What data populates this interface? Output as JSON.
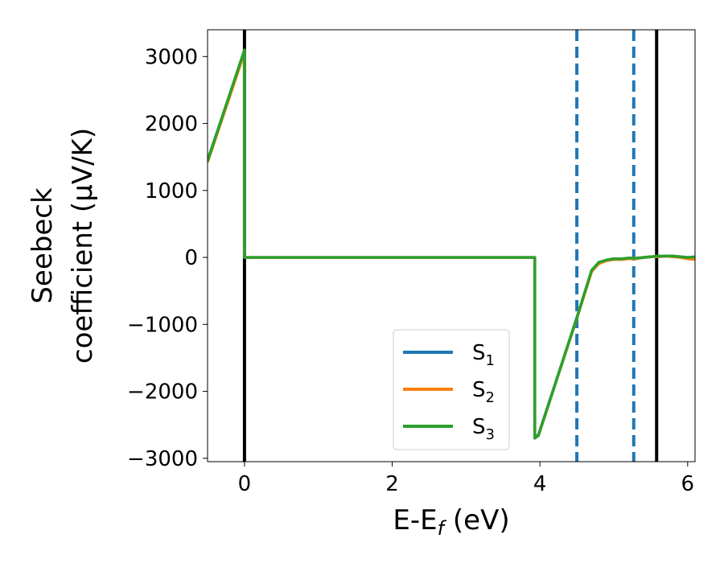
{
  "chart_data": {
    "type": "line",
    "xlabel": "E-E",
    "xlabel_sub": "f",
    "xlabel_unit": " (eV)",
    "ylabel_line1": "Seebeck",
    "ylabel_line2": "coefficient  (μV/K)",
    "xlim": [
      -0.5,
      6.1
    ],
    "ylim": [
      -3050,
      3400
    ],
    "xticks": [
      0,
      2,
      4,
      6
    ],
    "xtick_labels": [
      "0",
      "2",
      "4",
      "6"
    ],
    "yticks": [
      -3000,
      -2000,
      -1000,
      0,
      1000,
      2000,
      3000
    ],
    "ytick_labels": [
      "−3000",
      "−2000",
      "−1000",
      "0",
      "1000",
      "2000",
      "3000"
    ],
    "grid": false,
    "legend_position": "lower-center",
    "series": [
      {
        "name": "S",
        "sub": "1",
        "color": "#1f77b4",
        "x": [
          -0.5,
          0.0,
          0.0,
          3.93,
          3.93,
          3.98,
          4.5,
          4.7,
          4.8,
          4.9,
          5.0,
          5.1,
          5.2,
          5.3,
          5.4,
          5.5,
          5.6,
          5.7,
          5.8,
          5.9,
          6.0,
          6.1
        ],
        "y": [
          1450,
          3080,
          0,
          0,
          -2680,
          -2650,
          -900,
          -200,
          -80,
          -40,
          -20,
          -30,
          -10,
          -20,
          0,
          10,
          10,
          20,
          20,
          10,
          0,
          0
        ]
      },
      {
        "name": "S",
        "sub": "2",
        "color": "#ff7f0e",
        "x": [
          -0.5,
          0.0,
          0.0,
          3.93,
          3.93,
          3.98,
          4.5,
          4.7,
          4.8,
          4.9,
          5.0,
          5.1,
          5.2,
          5.3,
          5.4,
          5.5,
          5.6,
          5.7,
          5.8,
          5.9,
          6.0,
          6.1
        ],
        "y": [
          1420,
          3060,
          0,
          0,
          -2690,
          -2660,
          -910,
          -210,
          -90,
          -50,
          -30,
          -30,
          -20,
          -20,
          0,
          10,
          10,
          20,
          10,
          0,
          -20,
          -30
        ]
      },
      {
        "name": "S",
        "sub": "3",
        "color": "#2ca02c",
        "x": [
          -0.5,
          0.0,
          0.0,
          3.93,
          3.93,
          3.98,
          4.5,
          4.7,
          4.8,
          4.9,
          5.0,
          5.1,
          5.2,
          5.3,
          5.4,
          5.5,
          5.6,
          5.7,
          5.8,
          5.9,
          6.0,
          6.1
        ],
        "y": [
          1440,
          3100,
          0,
          0,
          -2700,
          -2660,
          -900,
          -190,
          -70,
          -40,
          -20,
          -20,
          -10,
          -10,
          0,
          10,
          20,
          20,
          20,
          10,
          0,
          10
        ]
      }
    ],
    "vlines": [
      {
        "x": 0.0,
        "style": "solid",
        "color": "#000000"
      },
      {
        "x": 4.5,
        "style": "dashed",
        "color": "#1f77b4"
      },
      {
        "x": 5.27,
        "style": "dashed",
        "color": "#1f77b4"
      },
      {
        "x": 5.58,
        "style": "solid",
        "color": "#000000"
      }
    ]
  }
}
